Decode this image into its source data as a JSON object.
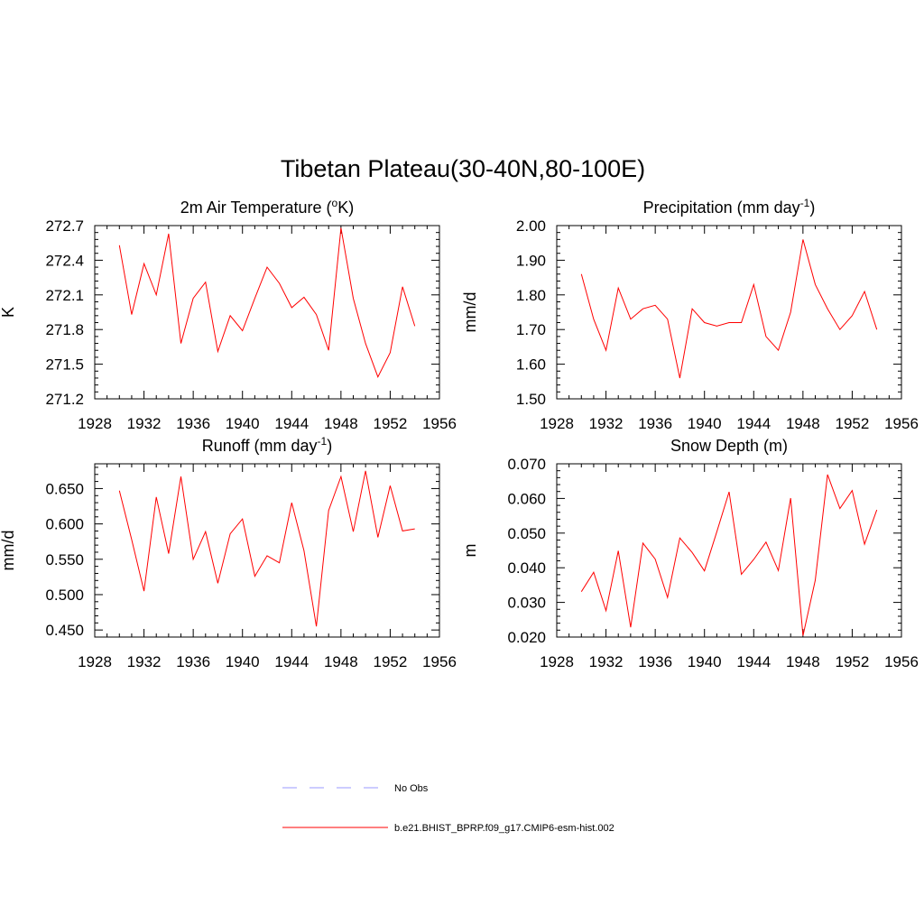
{
  "page": {
    "title": "Tibetan Plateau(30-40N,80-100E)"
  },
  "legend": {
    "placement": "bottom-left",
    "entries": [
      {
        "label": "No Obs",
        "color": "#9999ff",
        "dash": "dashed"
      },
      {
        "label": "b.e21.BHIST_BPRP.f09_g17.CMIP6-esm-hist.002",
        "color": "#ff0000",
        "dash": "solid"
      }
    ]
  },
  "chart_data": [
    {
      "id": "temp",
      "type": "line",
      "title_main": "2m Air Temperature (",
      "title_sup": "o",
      "title_end": "K)",
      "ylabel": "K",
      "xlim": [
        1928,
        1956
      ],
      "ylim": [
        271.2,
        272.7
      ],
      "xticks": [
        "1928",
        "1932",
        "1936",
        "1940",
        "1944",
        "1948",
        "1952",
        "1956"
      ],
      "yticks": [
        "271.2",
        "271.5",
        "271.8",
        "272.1",
        "272.4",
        "272.7"
      ],
      "color": "#ff0000",
      "x": [
        1930,
        1931,
        1932,
        1933,
        1934,
        1935,
        1936,
        1937,
        1938,
        1939,
        1940,
        1941,
        1942,
        1943,
        1944,
        1945,
        1946,
        1947,
        1948,
        1949,
        1950,
        1951,
        1952,
        1953,
        1954
      ],
      "values": [
        272.53,
        271.93,
        272.37,
        272.1,
        272.63,
        271.68,
        272.07,
        272.21,
        271.61,
        271.92,
        271.79,
        272.07,
        272.34,
        272.2,
        271.99,
        272.08,
        271.93,
        271.62,
        272.68,
        272.07,
        271.68,
        271.39,
        271.6,
        272.17,
        271.83
      ]
    },
    {
      "id": "precip",
      "type": "line",
      "title_main": "Precipitation (mm day",
      "title_sup": "-1",
      "title_end": ")",
      "ylabel": "mm/d",
      "xlim": [
        1928,
        1956
      ],
      "ylim": [
        1.5,
        2.0
      ],
      "xticks": [
        "1928",
        "1932",
        "1936",
        "1940",
        "1944",
        "1948",
        "1952",
        "1956"
      ],
      "yticks": [
        "1.50",
        "1.60",
        "1.70",
        "1.80",
        "1.90",
        "2.00"
      ],
      "color": "#ff0000",
      "x": [
        1930,
        1931,
        1932,
        1933,
        1934,
        1935,
        1936,
        1937,
        1938,
        1939,
        1940,
        1941,
        1942,
        1943,
        1944,
        1945,
        1946,
        1947,
        1948,
        1949,
        1950,
        1951,
        1952,
        1953,
        1954
      ],
      "values": [
        1.86,
        1.73,
        1.64,
        1.82,
        1.73,
        1.76,
        1.77,
        1.73,
        1.56,
        1.76,
        1.72,
        1.71,
        1.72,
        1.72,
        1.83,
        1.68,
        1.64,
        1.75,
        1.96,
        1.83,
        1.76,
        1.7,
        1.74,
        1.81,
        1.7
      ]
    },
    {
      "id": "runoff",
      "type": "line",
      "title_main": "Runoff (mm day",
      "title_sup": "-1",
      "title_end": ")",
      "ylabel": "mm/d",
      "xlim": [
        1928,
        1956
      ],
      "ylim": [
        0.44,
        0.685
      ],
      "xticks": [
        "1928",
        "1932",
        "1936",
        "1940",
        "1944",
        "1948",
        "1952",
        "1956"
      ],
      "yticks": [
        "0.450",
        "0.500",
        "0.550",
        "0.600",
        "0.650"
      ],
      "ytick_values": [
        0.45,
        0.5,
        0.55,
        0.6,
        0.65
      ],
      "color": "#ff0000",
      "x": [
        1930,
        1931,
        1932,
        1933,
        1934,
        1935,
        1936,
        1937,
        1938,
        1939,
        1940,
        1941,
        1942,
        1943,
        1944,
        1945,
        1946,
        1947,
        1948,
        1949,
        1950,
        1951,
        1952,
        1953,
        1954
      ],
      "values": [
        0.647,
        0.578,
        0.505,
        0.638,
        0.558,
        0.667,
        0.55,
        0.589,
        0.516,
        0.586,
        0.607,
        0.526,
        0.555,
        0.545,
        0.63,
        0.562,
        0.455,
        0.619,
        0.667,
        0.589,
        0.675,
        0.581,
        0.654,
        0.59,
        0.593
      ]
    },
    {
      "id": "snow",
      "type": "line",
      "title_main": "Snow Depth (m)",
      "title_sup": "",
      "title_end": "",
      "ylabel": "m",
      "xlim": [
        1928,
        1956
      ],
      "ylim": [
        0.02,
        0.07
      ],
      "xticks": [
        "1928",
        "1932",
        "1936",
        "1940",
        "1944",
        "1948",
        "1952",
        "1956"
      ],
      "yticks": [
        "0.020",
        "0.030",
        "0.040",
        "0.050",
        "0.060",
        "0.070"
      ],
      "color": "#ff0000",
      "x": [
        1930,
        1931,
        1932,
        1933,
        1934,
        1935,
        1936,
        1937,
        1938,
        1939,
        1940,
        1941,
        1942,
        1943,
        1944,
        1945,
        1946,
        1947,
        1948,
        1949,
        1950,
        1951,
        1952,
        1953,
        1954
      ],
      "values": [
        0.0331,
        0.0387,
        0.0276,
        0.0449,
        0.0228,
        0.0471,
        0.0425,
        0.0314,
        0.0486,
        0.0444,
        0.0391,
        0.0504,
        0.0619,
        0.0381,
        0.0424,
        0.0474,
        0.0392,
        0.0601,
        0.0204,
        0.0364,
        0.0669,
        0.0571,
        0.0623,
        0.0468,
        0.0567
      ]
    }
  ]
}
